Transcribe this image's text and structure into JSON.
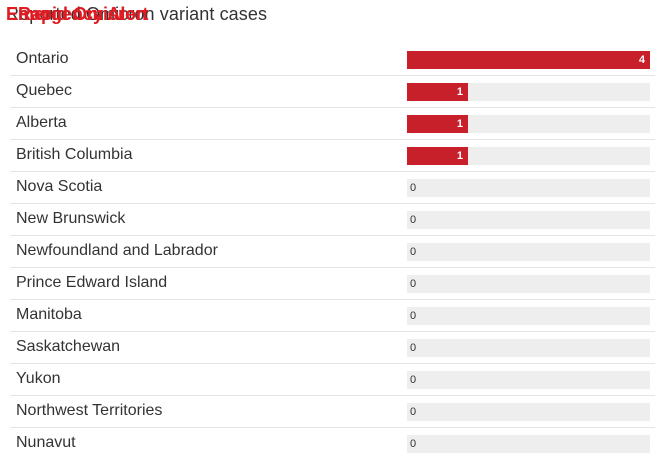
{
  "header": {
    "title": "Reported Omicron variant cases",
    "overlay_texts": [
      "Emergency Alert",
      "Rapid Omicron"
    ],
    "accent_color": "#e11b22"
  },
  "chart_data": {
    "type": "bar",
    "orientation": "horizontal",
    "title": "Reported Omicron variant cases",
    "categories": [
      "Ontario",
      "Quebec",
      "Alberta",
      "British Columbia",
      "Nova Scotia",
      "New Brunswick",
      "Newfoundland and Labrador",
      "Prince Edward Island",
      "Manitoba",
      "Saskatchewan",
      "Yukon",
      "Northwest Territories",
      "Nunavut"
    ],
    "values": [
      4,
      1,
      1,
      1,
      0,
      0,
      0,
      0,
      0,
      0,
      0,
      0,
      0
    ],
    "xlim": [
      0,
      4
    ],
    "bar_color": "#c8202a",
    "track_color": "#eeeeee",
    "grid": false
  }
}
